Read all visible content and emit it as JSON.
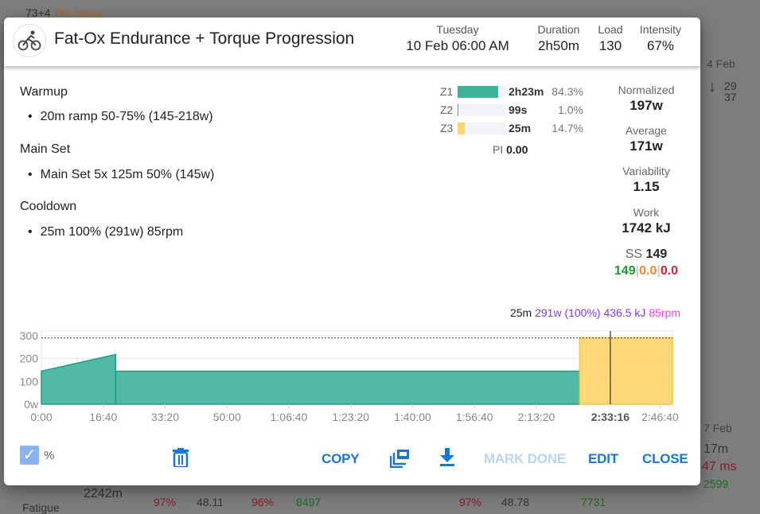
{
  "background": {
    "texts": [
      "73+4",
      "0m hours",
      "4 Feb",
      "29",
      "37",
      "2242m",
      "Fatigue",
      "97%",
      "48.11",
      "96%",
      "8497",
      "97%",
      "48.78",
      "7731",
      "17m",
      "47 ms",
      "2599",
      "7 Feb"
    ]
  },
  "header": {
    "title": "Fat-Ox Endurance + Torque Progression",
    "day": "Tuesday",
    "date": "10 Feb 06:00 AM",
    "duration_label": "Duration",
    "duration": "2h50m",
    "load_label": "Load",
    "load": "130",
    "intensity_label": "Intensity",
    "intensity": "67%"
  },
  "workout": {
    "sections": [
      {
        "title": "Warmup",
        "step": "20m ramp 50-75% (145-218w)"
      },
      {
        "title": "Main Set",
        "step": "Main Set 5x 125m 50% (145w)"
      },
      {
        "title": "Cooldown",
        "step": "25m 100% (291w) 85rpm"
      }
    ]
  },
  "zones": [
    {
      "label": "Z1",
      "time": "2h23m",
      "pct": "84.3%",
      "fill": 84.3,
      "color": "#3fb39a"
    },
    {
      "label": "Z2",
      "time": "99s",
      "pct": "1.0%",
      "fill": 1.0,
      "color": "#3fb39a"
    },
    {
      "label": "Z3",
      "time": "25m",
      "pct": "14.7%",
      "fill": 14.7,
      "color": "#ffd56a"
    }
  ],
  "pi": {
    "label": "PI",
    "value": "0.00"
  },
  "stats": {
    "normalized_label": "Normalized",
    "normalized": "197w",
    "average_label": "Average",
    "average": "171w",
    "variability_label": "Variability",
    "variability": "1.15",
    "work_label": "Work",
    "work": "1742 kJ",
    "ss_label": "SS",
    "ss": "149",
    "ss_a": "149",
    "ss_b": "0.0",
    "ss_c": "0.0"
  },
  "tooltip": {
    "duration": "25m",
    "power": "291w (100%)",
    "work": "436.5 kJ",
    "cadence": "85rpm"
  },
  "chart_data": {
    "type": "area",
    "ylabel": "",
    "y_ticks": [
      "0w",
      "100",
      "200",
      "300"
    ],
    "ylim": [
      0,
      321
    ],
    "xlim": [
      0,
      10200
    ],
    "ftp": 291,
    "x_ticks": [
      {
        "t": 0,
        "label": "0:00"
      },
      {
        "t": 1000,
        "label": "16:40"
      },
      {
        "t": 2000,
        "label": "33:20"
      },
      {
        "t": 3000,
        "label": "50:00"
      },
      {
        "t": 4000,
        "label": "1:06:40"
      },
      {
        "t": 5000,
        "label": "1:23:20"
      },
      {
        "t": 6000,
        "label": "1:40:00"
      },
      {
        "t": 7000,
        "label": "1:56:40"
      },
      {
        "t": 8000,
        "label": "2:13:20"
      },
      {
        "t": 10000,
        "label": "2:46:40"
      }
    ],
    "cursor": {
      "t": 9196,
      "label": "2:33:16"
    },
    "segments": [
      {
        "start": 0,
        "end": 1200,
        "from": 145,
        "to": 218,
        "color": "#3fb39a"
      },
      {
        "start": 1200,
        "end": 8700,
        "from": 145,
        "to": 145,
        "color": "#3fb39a"
      },
      {
        "start": 8700,
        "end": 10200,
        "from": 291,
        "to": 291,
        "color": "#ffd56a"
      }
    ]
  },
  "footer": {
    "percent_label": "%",
    "copy": "COPY",
    "mark_done": "MARK DONE",
    "edit": "EDIT",
    "close": "CLOSE"
  }
}
